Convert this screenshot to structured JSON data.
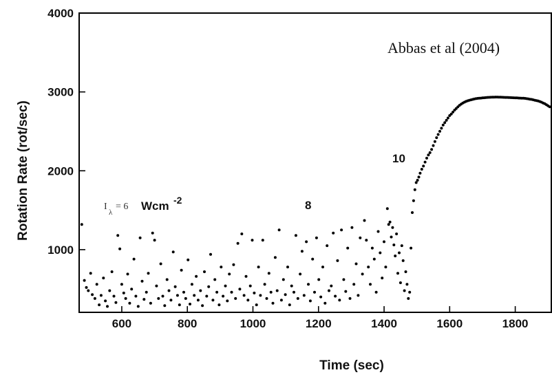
{
  "chart_data": {
    "type": "scatter",
    "title": "",
    "xlabel": "Time (sec)",
    "ylabel": "Rotation Rate (rot/sec)",
    "xlim": [
      470,
      1910
    ],
    "ylim": [
      0,
      4000
    ],
    "visible_ylim_bottom": 170,
    "x_ticks": [
      600,
      800,
      1000,
      1200,
      1400,
      1600,
      1800
    ],
    "x_tick_labels": [
      "600",
      "800",
      "1000",
      "1200",
      "1400",
      "1600",
      "1800"
    ],
    "y_ticks": [
      1000,
      2000,
      3000,
      4000
    ],
    "y_tick_labels": [
      "1000",
      "2000",
      "3000",
      "4000"
    ],
    "grid": false,
    "legend": null,
    "marker_color": "#000000",
    "annotations": {
      "source": "Abbas et al (2004)",
      "intensity_symbol": "I",
      "intensity_subscript": "λ",
      "intensity_eq": "= 6",
      "intensity_unit": "Wcm",
      "intensity_exp": "-2",
      "label_8": "8",
      "label_10": "10"
    },
    "series": [
      {
        "points": [
          [
            478,
            1320
          ],
          [
            486,
            610
          ],
          [
            492,
            520
          ],
          [
            498,
            480
          ],
          [
            505,
            700
          ],
          [
            510,
            430
          ],
          [
            518,
            380
          ],
          [
            524,
            560
          ],
          [
            531,
            300
          ],
          [
            537,
            420
          ],
          [
            544,
            640
          ],
          [
            550,
            350
          ],
          [
            556,
            280
          ],
          [
            563,
            480
          ],
          [
            570,
            720
          ],
          [
            576,
            410
          ],
          [
            582,
            330
          ],
          [
            588,
            1180
          ],
          [
            594,
            1010
          ],
          [
            600,
            560
          ],
          [
            606,
            450
          ],
          [
            612,
            380
          ],
          [
            618,
            690
          ],
          [
            624,
            320
          ],
          [
            630,
            500
          ],
          [
            637,
            880
          ],
          [
            643,
            410
          ],
          [
            650,
            280
          ],
          [
            656,
            1150
          ],
          [
            662,
            600
          ],
          [
            668,
            370
          ],
          [
            675,
            460
          ],
          [
            681,
            700
          ],
          [
            688,
            320
          ],
          [
            694,
            1210
          ],
          [
            700,
            1120
          ],
          [
            706,
            540
          ],
          [
            712,
            380
          ],
          [
            719,
            820
          ],
          [
            725,
            410
          ],
          [
            731,
            290
          ],
          [
            738,
            620
          ],
          [
            744,
            480
          ],
          [
            750,
            360
          ],
          [
            757,
            970
          ],
          [
            763,
            530
          ],
          [
            770,
            420
          ],
          [
            776,
            300
          ],
          [
            782,
            740
          ],
          [
            789,
            460
          ],
          [
            795,
            380
          ],
          [
            802,
            870
          ],
          [
            808,
            310
          ],
          [
            814,
            560
          ],
          [
            821,
            420
          ],
          [
            827,
            660
          ],
          [
            833,
            360
          ],
          [
            840,
            480
          ],
          [
            846,
            290
          ],
          [
            852,
            720
          ],
          [
            859,
            410
          ],
          [
            865,
            530
          ],
          [
            871,
            940
          ],
          [
            878,
            360
          ],
          [
            884,
            620
          ],
          [
            890,
            460
          ],
          [
            897,
            300
          ],
          [
            903,
            780
          ],
          [
            909,
            410
          ],
          [
            916,
            540
          ],
          [
            922,
            350
          ],
          [
            928,
            690
          ],
          [
            935,
            460
          ],
          [
            941,
            810
          ],
          [
            947,
            380
          ],
          [
            954,
            1080
          ],
          [
            960,
            500
          ],
          [
            966,
            1200
          ],
          [
            973,
            420
          ],
          [
            979,
            660
          ],
          [
            985,
            360
          ],
          [
            992,
            540
          ],
          [
            998,
            1120
          ],
          [
            1004,
            450
          ],
          [
            1011,
            300
          ],
          [
            1017,
            780
          ],
          [
            1023,
            420
          ],
          [
            1030,
            1120
          ],
          [
            1036,
            560
          ],
          [
            1042,
            380
          ],
          [
            1049,
            700
          ],
          [
            1055,
            460
          ],
          [
            1061,
            320
          ],
          [
            1068,
            900
          ],
          [
            1074,
            480
          ],
          [
            1080,
            1250
          ],
          [
            1087,
            360
          ],
          [
            1093,
            620
          ],
          [
            1099,
            430
          ],
          [
            1106,
            780
          ],
          [
            1112,
            300
          ],
          [
            1118,
            540
          ],
          [
            1125,
            460
          ],
          [
            1131,
            1180
          ],
          [
            1137,
            380
          ],
          [
            1144,
            690
          ],
          [
            1150,
            980
          ],
          [
            1156,
            420
          ],
          [
            1163,
            1100
          ],
          [
            1169,
            560
          ],
          [
            1175,
            350
          ],
          [
            1182,
            880
          ],
          [
            1188,
            460
          ],
          [
            1194,
            1150
          ],
          [
            1201,
            620
          ],
          [
            1207,
            400
          ],
          [
            1213,
            780
          ],
          [
            1220,
            320
          ],
          [
            1226,
            1050
          ],
          [
            1232,
            480
          ],
          [
            1239,
            540
          ],
          [
            1245,
            1210
          ],
          [
            1251,
            410
          ],
          [
            1258,
            860
          ],
          [
            1264,
            360
          ],
          [
            1270,
            1250
          ],
          [
            1277,
            620
          ],
          [
            1283,
            470
          ],
          [
            1289,
            1020
          ],
          [
            1296,
            380
          ],
          [
            1302,
            1280
          ],
          [
            1308,
            560
          ],
          [
            1315,
            820
          ],
          [
            1321,
            420
          ],
          [
            1327,
            1150
          ],
          [
            1334,
            690
          ],
          [
            1340,
            1370
          ],
          [
            1346,
            1120
          ],
          [
            1352,
            780
          ],
          [
            1358,
            560
          ],
          [
            1364,
            1020
          ],
          [
            1370,
            880
          ],
          [
            1376,
            460
          ],
          [
            1382,
            1230
          ],
          [
            1388,
            960
          ],
          [
            1394,
            640
          ],
          [
            1400,
            1100
          ],
          [
            1405,
            780
          ],
          [
            1410,
            1520
          ],
          [
            1414,
            1320
          ],
          [
            1418,
            1350
          ],
          [
            1422,
            1160
          ],
          [
            1426,
            1280
          ],
          [
            1430,
            1060
          ],
          [
            1434,
            920
          ],
          [
            1438,
            1200
          ],
          [
            1442,
            700
          ],
          [
            1446,
            960
          ],
          [
            1450,
            580
          ],
          [
            1454,
            1050
          ],
          [
            1458,
            860
          ],
          [
            1462,
            480
          ],
          [
            1466,
            720
          ],
          [
            1470,
            560
          ],
          [
            1474,
            380
          ],
          [
            1478,
            460
          ],
          [
            1482,
            1020
          ],
          [
            1486,
            1470
          ],
          [
            1490,
            1620
          ],
          [
            1494,
            1760
          ],
          [
            1498,
            1850
          ],
          [
            1502,
            1880
          ],
          [
            1506,
            1920
          ],
          [
            1510,
            1970
          ],
          [
            1515,
            2020
          ],
          [
            1520,
            2060
          ],
          [
            1525,
            2110
          ],
          [
            1530,
            2160
          ],
          [
            1535,
            2200
          ],
          [
            1540,
            2230
          ],
          [
            1545,
            2270
          ],
          [
            1550,
            2320
          ],
          [
            1555,
            2370
          ],
          [
            1560,
            2420
          ],
          [
            1565,
            2460
          ],
          [
            1570,
            2500
          ],
          [
            1575,
            2540
          ],
          [
            1580,
            2580
          ],
          [
            1585,
            2610
          ],
          [
            1590,
            2640
          ],
          [
            1595,
            2670
          ],
          [
            1600,
            2700
          ],
          [
            1605,
            2720
          ],
          [
            1610,
            2745
          ],
          [
            1615,
            2770
          ],
          [
            1620,
            2790
          ],
          [
            1625,
            2810
          ],
          [
            1630,
            2830
          ],
          [
            1635,
            2845
          ],
          [
            1640,
            2860
          ],
          [
            1645,
            2870
          ],
          [
            1650,
            2880
          ],
          [
            1655,
            2888
          ],
          [
            1660,
            2895
          ],
          [
            1665,
            2900
          ],
          [
            1670,
            2905
          ],
          [
            1675,
            2910
          ],
          [
            1680,
            2915
          ],
          [
            1685,
            2918
          ],
          [
            1690,
            2920
          ],
          [
            1695,
            2922
          ],
          [
            1700,
            2925
          ],
          [
            1705,
            2926
          ],
          [
            1710,
            2928
          ],
          [
            1715,
            2930
          ],
          [
            1720,
            2931
          ],
          [
            1725,
            2932
          ],
          [
            1730,
            2933
          ],
          [
            1735,
            2934
          ],
          [
            1740,
            2935
          ],
          [
            1745,
            2935
          ],
          [
            1750,
            2934
          ],
          [
            1755,
            2933
          ],
          [
            1760,
            2932
          ],
          [
            1765,
            2931
          ],
          [
            1770,
            2930
          ],
          [
            1775,
            2930
          ],
          [
            1780,
            2929
          ],
          [
            1785,
            2928
          ],
          [
            1790,
            2927
          ],
          [
            1795,
            2926
          ],
          [
            1800,
            2925
          ],
          [
            1805,
            2924
          ],
          [
            1810,
            2923
          ],
          [
            1815,
            2922
          ],
          [
            1820,
            2921
          ],
          [
            1825,
            2920
          ],
          [
            1830,
            2918
          ],
          [
            1835,
            2915
          ],
          [
            1840,
            2912
          ],
          [
            1845,
            2908
          ],
          [
            1850,
            2905
          ],
          [
            1855,
            2900
          ],
          [
            1860,
            2895
          ],
          [
            1865,
            2890
          ],
          [
            1870,
            2885
          ],
          [
            1875,
            2878
          ],
          [
            1880,
            2870
          ],
          [
            1885,
            2860
          ],
          [
            1890,
            2850
          ],
          [
            1895,
            2838
          ],
          [
            1900,
            2825
          ],
          [
            1905,
            2812
          ]
        ]
      }
    ]
  }
}
